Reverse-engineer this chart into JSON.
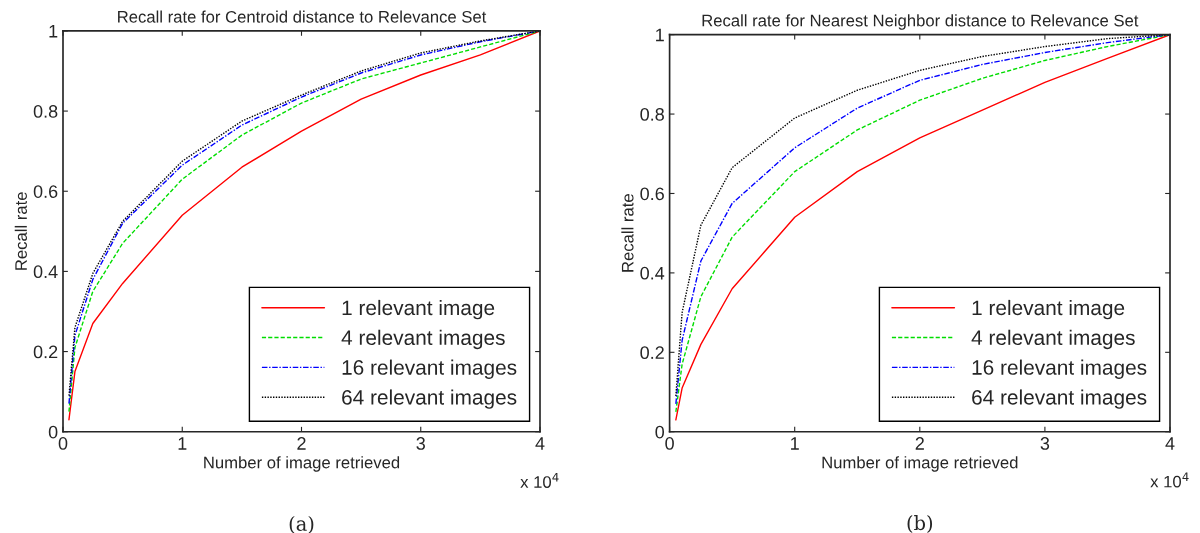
{
  "chart_data": [
    {
      "type": "line",
      "title": "Recall rate for Centroid distance to Relevance Set",
      "xlabel": "Number of image retrieved",
      "ylabel": "Recall rate",
      "x": [
        0.05,
        0.1,
        0.25,
        0.5,
        1,
        1.5,
        2,
        2.5,
        3,
        3.5,
        4
      ],
      "series": [
        {
          "name": "1 relevant image",
          "color": "#ff0000",
          "line_style": "solid",
          "values": [
            0.03,
            0.15,
            0.27,
            0.37,
            0.54,
            0.66,
            0.75,
            0.83,
            0.89,
            0.94,
            1.0
          ]
        },
        {
          "name": "4 relevant images",
          "color": "#00dd00",
          "line_style": "dashed",
          "values": [
            0.05,
            0.21,
            0.35,
            0.47,
            0.63,
            0.74,
            0.82,
            0.88,
            0.92,
            0.96,
            1.0
          ]
        },
        {
          "name": "16 relevant images",
          "color": "#0000ff",
          "line_style": "dashdot",
          "values": [
            0.07,
            0.24,
            0.38,
            0.52,
            0.665,
            0.765,
            0.835,
            0.895,
            0.94,
            0.973,
            1.0
          ]
        },
        {
          "name": "64 relevant images",
          "color": "#000000",
          "line_style": "dotted",
          "values": [
            0.09,
            0.26,
            0.395,
            0.525,
            0.675,
            0.775,
            0.84,
            0.9,
            0.945,
            0.975,
            1.0
          ]
        }
      ],
      "xlim": [
        0,
        4
      ],
      "xticks": [
        0,
        1,
        2,
        3,
        4
      ],
      "ylim": [
        0,
        1
      ],
      "yticks": [
        0,
        0.2,
        0.4,
        0.6,
        0.8,
        1
      ],
      "grid": false,
      "legend": "bottom right",
      "annotations": [
        "x 10$^{4}$",
        "(a)"
      ]
    },
    {
      "type": "line",
      "title": "Recall rate for Nearest Neighbor distance to Relevance Set",
      "xlabel": "Number of image retrieved",
      "ylabel": "Recall rate",
      "x": [
        0.05,
        0.1,
        0.25,
        0.5,
        1,
        1.5,
        2,
        2.5,
        3,
        3.5,
        4
      ],
      "series": [
        {
          "name": "1 relevant image",
          "color": "#ff0000",
          "line_style": "solid",
          "values": [
            0.03,
            0.11,
            0.22,
            0.36,
            0.54,
            0.655,
            0.74,
            0.81,
            0.88,
            0.94,
            1.0
          ]
        },
        {
          "name": "4 relevant images",
          "color": "#00dd00",
          "line_style": "dashed",
          "values": [
            0.05,
            0.17,
            0.34,
            0.49,
            0.655,
            0.76,
            0.835,
            0.89,
            0.935,
            0.97,
            1.0
          ]
        },
        {
          "name": "16 relevant images",
          "color": "#0000ff",
          "line_style": "dashdot",
          "values": [
            0.07,
            0.23,
            0.43,
            0.575,
            0.715,
            0.815,
            0.885,
            0.925,
            0.955,
            0.98,
            1.0
          ]
        },
        {
          "name": "64 relevant images",
          "color": "#000000",
          "line_style": "dotted",
          "values": [
            0.09,
            0.3,
            0.52,
            0.665,
            0.79,
            0.86,
            0.91,
            0.945,
            0.97,
            0.99,
            1.0
          ]
        }
      ],
      "xlim": [
        0,
        4
      ],
      "xticks": [
        0,
        1,
        2,
        3,
        4
      ],
      "ylim": [
        0,
        1
      ],
      "yticks": [
        0,
        0.2,
        0.4,
        0.6,
        0.8,
        1
      ],
      "grid": false,
      "legend": "bottom right",
      "annotations": [
        "x 10$^{4}$",
        "(b)"
      ]
    }
  ]
}
